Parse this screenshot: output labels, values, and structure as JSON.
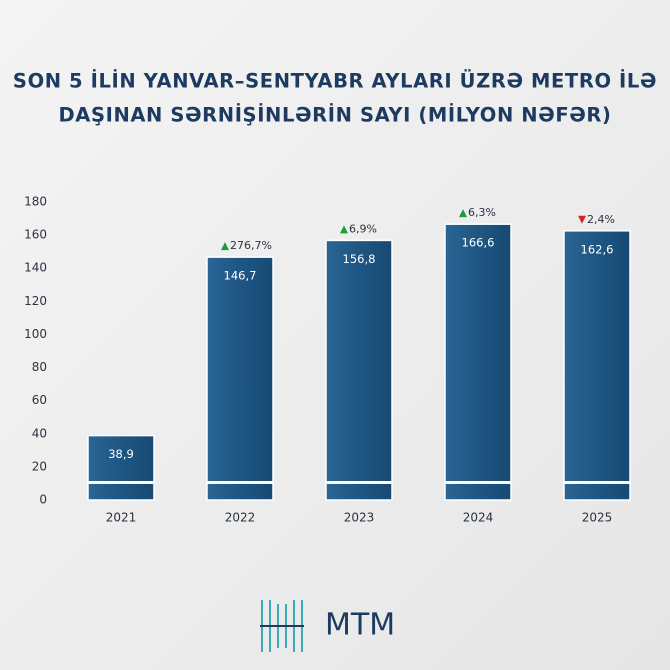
{
  "chart_data": {
    "type": "bar",
    "title": [
      "SON 5 İLİN YANVAR–SENTYABR AYLARI ÜZRƏ METRO İLƏ",
      "DAŞINAN SƏRNİŞİNLƏRİN SAYI (MİLYON NƏFƏR)"
    ],
    "categories": [
      "2021",
      "2022",
      "2023",
      "2024",
      "2025"
    ],
    "values": [
      38.9,
      146.7,
      156.8,
      166.6,
      162.6
    ],
    "value_labels": [
      "38,9",
      "146,7",
      "156,8",
      "166,6",
      "162,6"
    ],
    "changes": [
      null,
      {
        "label": "276,7%",
        "direction": "up"
      },
      {
        "label": "6,9%",
        "direction": "up"
      },
      {
        "label": "6,3%",
        "direction": "up"
      },
      {
        "label": "2,4%",
        "direction": "down"
      }
    ],
    "color": "#1e5683",
    "ylim": [
      0,
      180
    ],
    "yticks": [
      0,
      20,
      40,
      60,
      80,
      100,
      120,
      140,
      160,
      180
    ],
    "grid": false,
    "logo": "MTM"
  }
}
